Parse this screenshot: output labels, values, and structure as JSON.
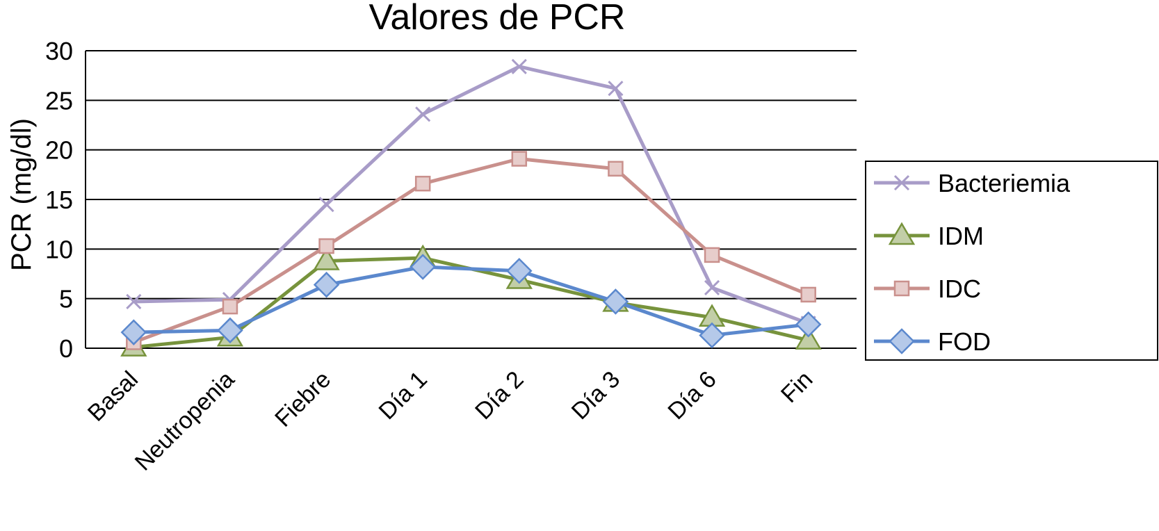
{
  "chart_data": {
    "type": "line",
    "title": "Valores de PCR",
    "xlabel": "",
    "ylabel": "PCR (mg/dl)",
    "ylim": [
      0,
      30
    ],
    "yticks": [
      "0",
      "5",
      "10",
      "15",
      "20",
      "25",
      "30"
    ],
    "grid": "horizontal",
    "legend_position": "right",
    "categories": [
      "Basal",
      "Neutropenia",
      "Fiebre",
      "Día 1",
      "Día 2",
      "Día 3",
      "Día 6",
      "Fin"
    ],
    "series": [
      {
        "name": "Bacteriemia",
        "marker": "x",
        "color": "#a89cc8",
        "values": [
          4.7,
          4.9,
          14.5,
          23.6,
          28.4,
          26.2,
          6.1,
          2.5
        ]
      },
      {
        "name": "IDM",
        "marker": "triangle",
        "color": "#77933c",
        "values": [
          0.1,
          1.1,
          8.8,
          9.1,
          6.9,
          4.6,
          3.1,
          0.8
        ]
      },
      {
        "name": "IDC",
        "marker": "square",
        "color": "#c9908c",
        "values": [
          0.6,
          4.2,
          10.3,
          16.6,
          19.1,
          18.1,
          9.4,
          5.4
        ]
      },
      {
        "name": "FOD",
        "marker": "diamond",
        "color": "#5b88cd",
        "values": [
          1.6,
          1.8,
          6.4,
          8.2,
          7.8,
          4.7,
          1.3,
          2.4
        ]
      }
    ]
  }
}
